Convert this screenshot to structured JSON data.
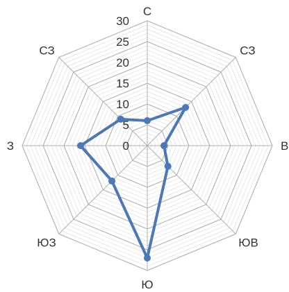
{
  "chart_data": {
    "type": "radar",
    "categories": [
      "С",
      "СЗ",
      "В",
      "ЮВ",
      "Ю",
      "ЮЗ",
      "З",
      "СЗ"
    ],
    "series": [
      {
        "values": [
          6,
          13,
          4,
          7,
          27,
          12,
          16,
          9
        ]
      }
    ],
    "rlim": [
      0,
      30
    ],
    "ticks": [
      "0",
      "5",
      "10",
      "15",
      "20",
      "25",
      "30"
    ],
    "grid": true,
    "minor_grid_step": 1,
    "colors": {
      "series": "#4a78b8",
      "major_grid": "#b0b0b0",
      "minor_grid": "#e2e2e2",
      "text": "#333333"
    }
  }
}
